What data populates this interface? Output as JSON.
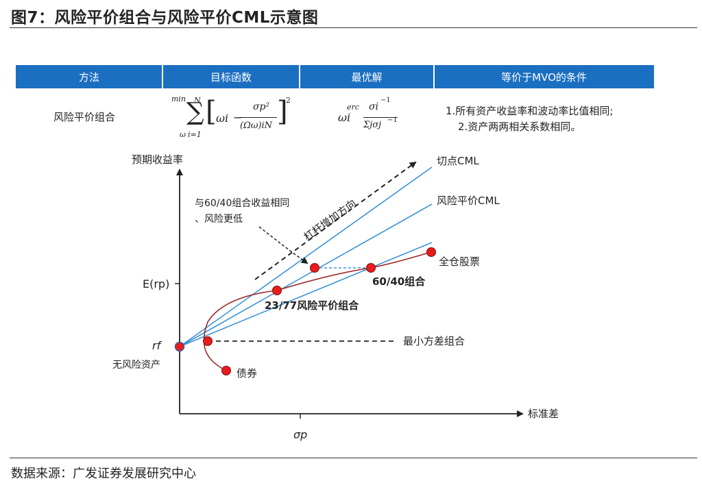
{
  "header": {
    "title": "图7：风险平价组合与风险平价CML示意图"
  },
  "table": {
    "columns": [
      "方法",
      "目标函数",
      "最优解",
      "等价于MVO的条件"
    ],
    "row": {
      "method": "风险平价组合",
      "objective": {
        "min_label": "min",
        "sub_label": "ω",
        "sum_upper": "N",
        "sum_lower": "i=1",
        "term_left": "ωi",
        "numerator": "σp²",
        "denominator": "(Ωω)iN",
        "power": "2"
      },
      "solution": {
        "prefix": "ωi",
        "prefix_sup": "erc",
        "numerator": "σi",
        "numerator_sup": "−1",
        "denominator": "Σjσj",
        "denominator_sup": "−1"
      },
      "conditions": [
        "1.所有资产收益率和波动率比值相同;",
        "2.资产两两相关系数相同。"
      ]
    }
  },
  "diagram": {
    "y_axis_label": "预期收益率",
    "x_axis_label": "标准差",
    "y_tick_label": "E(rp)",
    "x_tick_label": "σp",
    "rf_label": "rf",
    "riskfree_label": "无风险资产",
    "lines": {
      "tangency_cml": "切点CML",
      "risk_parity_cml": "风险平价CML"
    },
    "leverage_label": "杠杆增加方向",
    "annotation": [
      "与60/40组合收益相同",
      "、风险更低"
    ],
    "points": {
      "equity": "全仓股票",
      "p6040": "60/40组合",
      "rp2377": "23/77风险平价组合",
      "min_var": "最小方差组合",
      "bond": "债券"
    },
    "colors": {
      "cml": "#3b93d6",
      "frontier": "#a02424",
      "point_fill": "#e81c1c",
      "header_blue": "#1b6fc1"
    }
  },
  "footer": {
    "source": "数据来源：广发证券发展研究中心"
  }
}
